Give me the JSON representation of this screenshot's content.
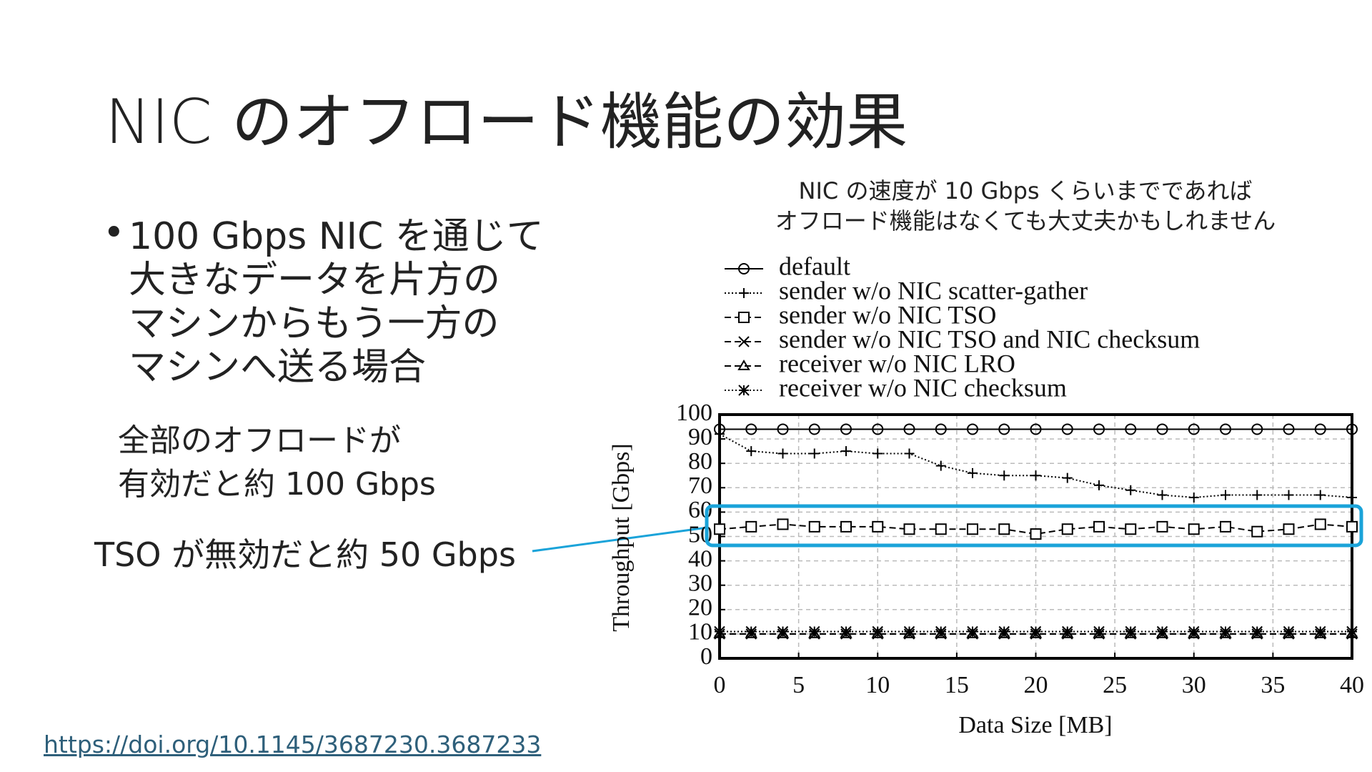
{
  "slide": {
    "title": "NIC のオフロード機能の効果",
    "bullet_lines": [
      "100 Gbps NIC を通じて",
      "大きなデータを片方の",
      "マシンからもう一方の",
      "マシンへ送る場合"
    ],
    "note_lines": [
      "全部のオフロードが",
      "有効だと約 100 Gbps"
    ],
    "tso_note": "TSO が無効だと約 50 Gbps",
    "link": "https://doi.org/10.1145/3687230.3687233"
  },
  "chart_data": {
    "type": "line",
    "title": [
      "NIC の速度が 10 Gbps くらいまでであれば",
      "オフロード機能はなくても大丈夫かもしれません"
    ],
    "x_label": "Data Size [MB]",
    "y_label": "Throughput [Gbps]",
    "x": [
      0,
      2,
      4,
      6,
      8,
      10,
      12,
      14,
      16,
      18,
      20,
      22,
      24,
      26,
      28,
      30,
      32,
      34,
      36,
      38,
      40
    ],
    "xlim": [
      0,
      40
    ],
    "xticks": [
      0,
      5,
      10,
      15,
      20,
      25,
      30,
      35,
      40
    ],
    "ylim": [
      0,
      100
    ],
    "yticks": [
      0,
      10,
      20,
      30,
      40,
      50,
      60,
      70,
      80,
      90,
      100
    ],
    "grid": true,
    "series": [
      {
        "name": "default",
        "color": "#000000",
        "marker": "circle",
        "dash": "solid",
        "values": [
          94,
          94,
          94,
          94,
          94,
          94,
          94,
          94,
          94,
          94,
          94,
          94,
          94,
          94,
          94,
          94,
          94,
          94,
          94,
          94,
          94
        ]
      },
      {
        "name": "sender w/o NIC scatter-gather",
        "color": "#000000",
        "marker": "plus",
        "dash": "dotted",
        "values": [
          92,
          85,
          84,
          84,
          85,
          84,
          84,
          79,
          76,
          75,
          75,
          74,
          71,
          69,
          67,
          66,
          67,
          67,
          67,
          67,
          66
        ]
      },
      {
        "name": "sender w/o NIC TSO",
        "color": "#000000",
        "marker": "square",
        "dash": "dashed",
        "values": [
          53,
          54,
          55,
          54,
          54,
          54,
          53,
          53,
          53,
          53,
          51,
          53,
          54,
          53,
          54,
          53,
          54,
          52,
          53,
          55,
          54
        ]
      },
      {
        "name": "sender w/o NIC TSO and NIC checksum",
        "color": "#000000",
        "marker": "x",
        "dash": "dashed",
        "values": [
          10,
          10,
          10,
          10,
          10,
          10,
          10,
          10,
          10,
          10,
          10,
          10,
          10,
          10,
          10,
          10,
          10,
          10,
          10,
          10,
          10
        ]
      },
      {
        "name": "receiver w/o NIC LRO",
        "color": "#000000",
        "marker": "triangle",
        "dash": "dashed",
        "values": [
          10,
          10,
          10,
          10,
          10,
          10,
          10,
          10,
          10,
          10,
          10,
          10,
          10,
          10,
          10,
          10,
          10,
          10,
          10,
          10,
          10
        ]
      },
      {
        "name": "receiver w/o NIC checksum",
        "color": "#000000",
        "marker": "asterisk",
        "dash": "dotted",
        "values": [
          11,
          11,
          11,
          11,
          11,
          11,
          11,
          11,
          11,
          11,
          11,
          11,
          11,
          11,
          11,
          11,
          11,
          11,
          11,
          11,
          11
        ]
      }
    ]
  }
}
